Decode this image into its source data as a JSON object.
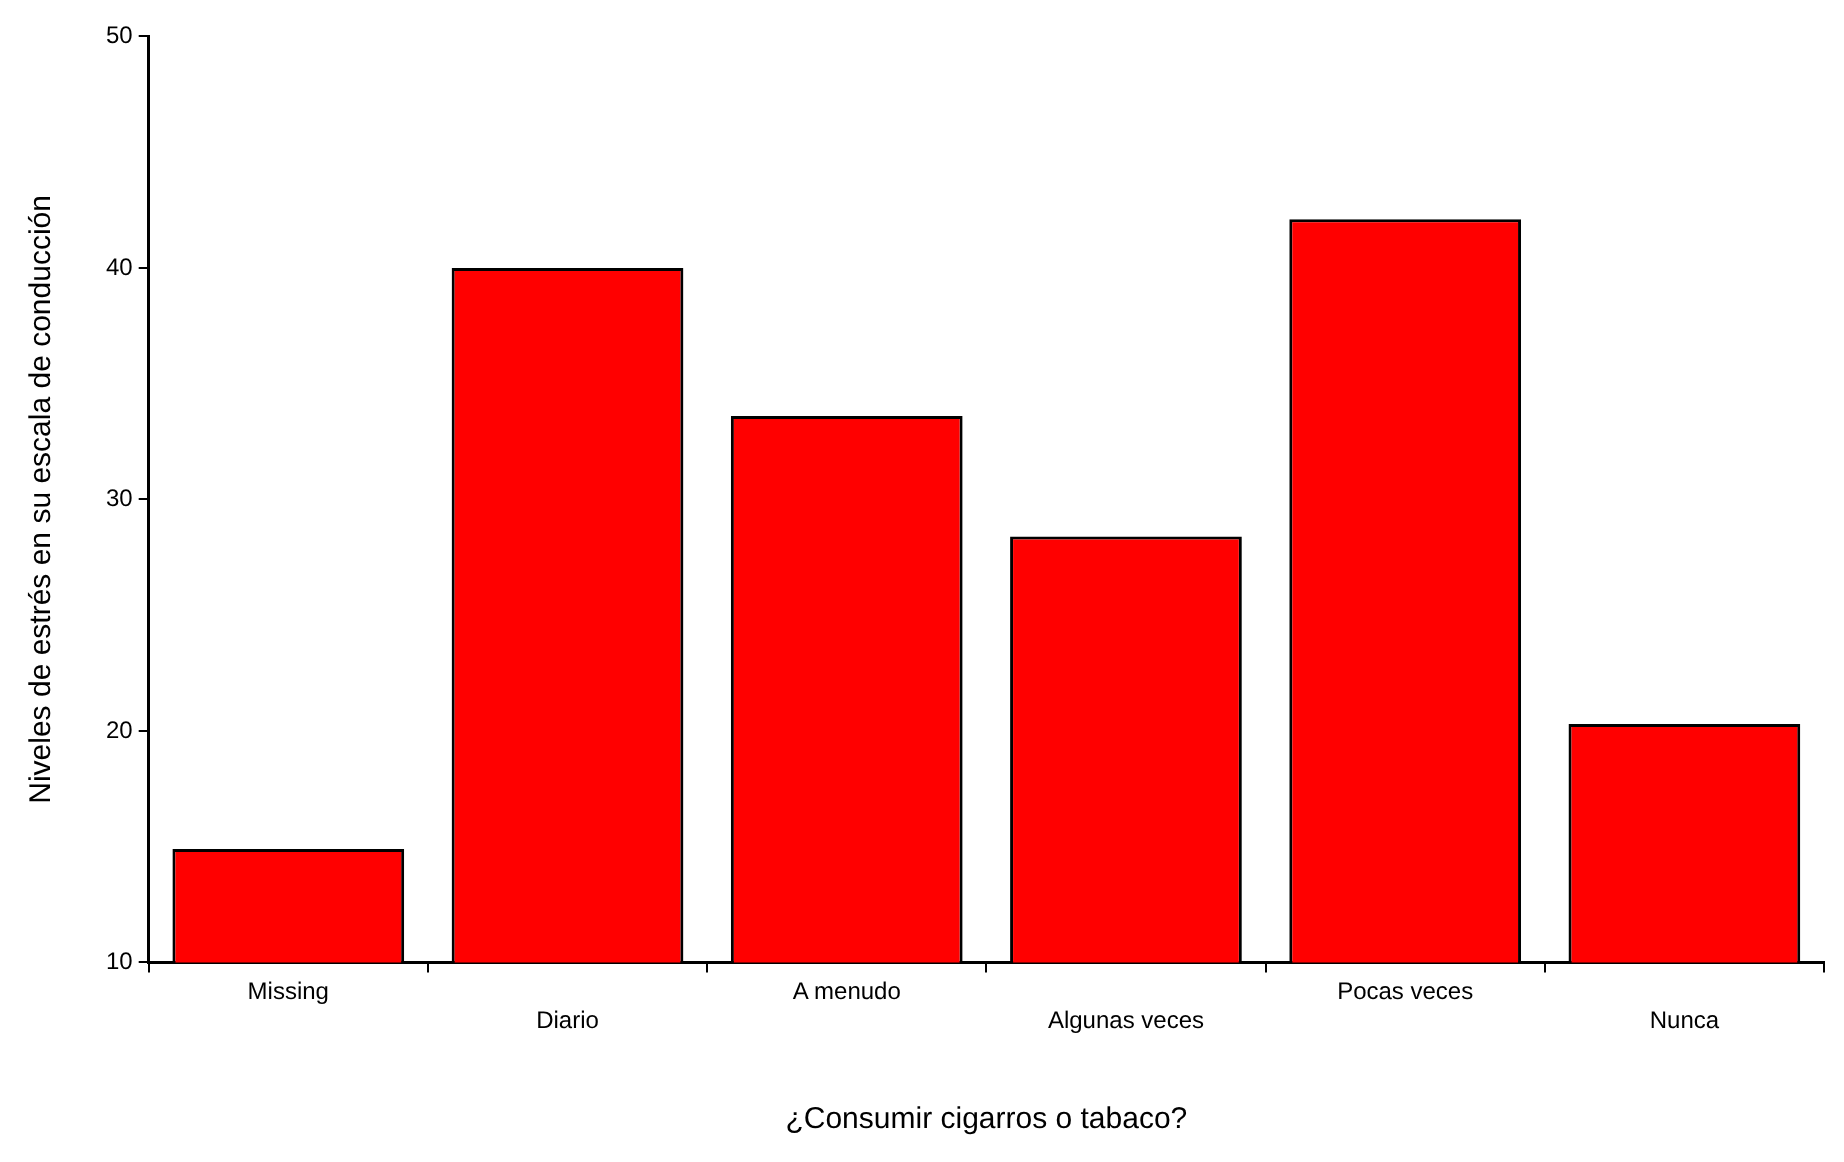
{
  "chart_data": {
    "type": "bar",
    "xlabel": "¿Consumir cigarros o tabaco?",
    "ylabel": "Niveles de estrés en su escala de conducción",
    "categories": [
      "Missing",
      "Diario",
      "A menudo",
      "Algunas veces",
      "Pocas veces",
      "Nunca"
    ],
    "values": [
      14.9,
      40,
      33.6,
      28.4,
      42.1,
      20.3
    ],
    "color": "#ff0000",
    "ylim": [
      10,
      50
    ],
    "yticks": [
      10,
      20,
      30,
      40,
      50
    ],
    "grid": false,
    "legend": false
  }
}
